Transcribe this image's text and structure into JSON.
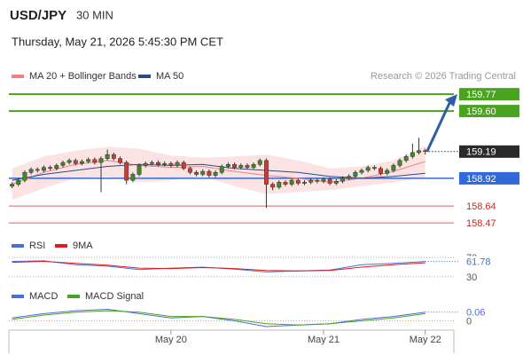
{
  "header": {
    "symbol": "USD/JPY",
    "timeframe": "30 MIN",
    "timestamp": "Thursday, May 21, 2026 5:45:30 PM CET",
    "copyright": "Research © 2026 Trading Central"
  },
  "chart_data": [
    {
      "type": "candlestick",
      "xlim": [
        0,
        70
      ],
      "xticks": [
        {
          "value": 25.5,
          "label": "May 20"
        },
        {
          "value": 49.5,
          "label": "May 21"
        },
        {
          "value": 65.5,
          "label": "May 22"
        }
      ],
      "ylim": [
        158.39,
        159.87
      ],
      "up_color": "#3d8b22",
      "down_color": "#d23a2f",
      "x": [
        0.5,
        1.5,
        2.5,
        3.5,
        4.5,
        5.5,
        6.5,
        7.5,
        8.5,
        9.5,
        10.5,
        11.5,
        12.5,
        13.5,
        14.5,
        15.5,
        16.5,
        17.5,
        18.5,
        19.5,
        20.5,
        21.5,
        22.5,
        23.5,
        24.5,
        25.5,
        26.5,
        27.5,
        28.5,
        29.5,
        30.5,
        31.5,
        32.5,
        33.5,
        34.5,
        35.5,
        36.5,
        37.5,
        38.5,
        39.5,
        40.5,
        41.5,
        42.5,
        43.5,
        44.5,
        45.5,
        46.5,
        47.5,
        48.5,
        49.5,
        50.5,
        51.5,
        52.5,
        53.5,
        54.5,
        55.5,
        56.5,
        57.5,
        58.5,
        59.5,
        60.5,
        61.5,
        62.5,
        63.5,
        64.5,
        65.5
      ],
      "open": [
        158.84,
        158.86,
        158.9,
        158.98,
        159.01,
        159.0,
        159.03,
        159.02,
        159.05,
        159.08,
        159.1,
        159.07,
        159.09,
        159.11,
        159.08,
        159.12,
        159.16,
        159.12,
        159.08,
        158.9,
        158.96,
        159.05,
        159.07,
        159.08,
        159.06,
        159.07,
        159.05,
        159.08,
        159.02,
        158.98,
        158.96,
        158.99,
        158.95,
        158.98,
        159.04,
        159.06,
        159.03,
        159.05,
        159.03,
        159.06,
        159.1,
        158.86,
        158.83,
        158.88,
        158.86,
        158.9,
        158.87,
        158.88,
        158.9,
        158.89,
        158.91,
        158.87,
        158.89,
        158.92,
        158.94,
        158.98,
        159.0,
        159.03,
        159.02,
        158.97,
        159.0,
        159.05,
        159.1,
        159.14,
        159.18,
        159.2
      ],
      "high": [
        158.88,
        158.92,
        159.0,
        159.03,
        159.03,
        159.05,
        159.05,
        159.07,
        159.1,
        159.12,
        159.12,
        159.11,
        159.13,
        159.13,
        159.14,
        159.21,
        159.18,
        159.14,
        159.1,
        158.98,
        159.07,
        159.09,
        159.1,
        159.1,
        159.09,
        159.09,
        159.1,
        159.1,
        159.04,
        159.0,
        159.01,
        159.01,
        159.0,
        159.06,
        159.08,
        159.08,
        159.07,
        159.07,
        159.08,
        159.12,
        159.12,
        158.88,
        158.9,
        158.9,
        158.92,
        158.92,
        158.9,
        158.92,
        158.92,
        158.93,
        158.93,
        158.91,
        158.94,
        158.96,
        159.0,
        159.02,
        159.05,
        159.05,
        159.04,
        159.02,
        159.07,
        159.12,
        159.16,
        159.27,
        159.33,
        159.22
      ],
      "low": [
        158.82,
        158.84,
        158.88,
        158.96,
        158.98,
        158.98,
        159.0,
        159.0,
        159.03,
        159.06,
        159.05,
        159.05,
        159.07,
        159.06,
        158.78,
        159.1,
        159.1,
        159.06,
        158.86,
        158.88,
        158.94,
        159.03,
        159.05,
        159.04,
        159.04,
        159.03,
        159.03,
        159.0,
        158.96,
        158.94,
        158.94,
        158.93,
        158.93,
        158.96,
        159.02,
        159.01,
        159.01,
        159.01,
        159.01,
        159.04,
        158.62,
        158.8,
        158.81,
        158.84,
        158.84,
        158.85,
        158.85,
        158.86,
        158.87,
        158.87,
        158.85,
        158.85,
        158.87,
        158.9,
        158.92,
        158.96,
        158.98,
        159.0,
        158.95,
        158.95,
        158.98,
        159.03,
        159.08,
        159.12,
        159.16,
        159.16
      ],
      "close": [
        158.86,
        158.9,
        158.98,
        159.01,
        159.0,
        159.03,
        159.02,
        159.05,
        159.08,
        159.1,
        159.07,
        159.09,
        159.11,
        159.08,
        159.12,
        159.16,
        159.12,
        159.08,
        158.9,
        158.96,
        159.05,
        159.07,
        159.08,
        159.06,
        159.07,
        159.05,
        159.08,
        159.02,
        158.98,
        158.96,
        158.99,
        158.95,
        158.98,
        159.04,
        159.06,
        159.03,
        159.05,
        159.03,
        159.06,
        159.1,
        158.86,
        158.83,
        158.88,
        158.86,
        158.9,
        158.87,
        158.88,
        158.9,
        158.89,
        158.91,
        158.87,
        158.89,
        158.92,
        158.94,
        158.98,
        159.0,
        159.03,
        159.02,
        158.97,
        159.0,
        159.05,
        159.1,
        159.14,
        159.18,
        159.2,
        159.19
      ],
      "overlay_x": [
        0.5,
        5.5,
        10.5,
        15.5,
        20.5,
        25.5,
        30.5,
        35.5,
        40.5,
        45.5,
        50.5,
        55.5,
        60.5,
        65.5
      ],
      "overlays": [
        {
          "name": "MA 20 + Bollinger Bands",
          "color": "#f08080",
          "band_color": "#fbdcdc",
          "values": [
            158.86,
            158.98,
            159.06,
            159.1,
            159.05,
            159.03,
            159.04,
            158.99,
            158.95,
            158.92,
            158.88,
            158.92,
            158.99,
            159.09
          ],
          "upper": [
            159.02,
            159.14,
            159.2,
            159.24,
            159.22,
            159.15,
            159.13,
            159.14,
            159.16,
            159.1,
            159.02,
            159.04,
            159.1,
            159.25
          ],
          "lower": [
            158.7,
            158.82,
            158.92,
            158.94,
            158.88,
            158.9,
            158.94,
            158.84,
            158.76,
            158.78,
            158.8,
            158.84,
            158.88,
            158.93
          ]
        },
        {
          "name": "MA 50",
          "color": "#2c4a86",
          "values": [
            158.9,
            158.96,
            159.0,
            159.04,
            159.06,
            159.05,
            159.06,
            159.02,
            159.0,
            158.98,
            158.94,
            158.92,
            158.94,
            158.97
          ]
        }
      ],
      "levels": [
        {
          "value": 159.77,
          "label": "159.77",
          "kind": "resistance",
          "color": "#4aa31e"
        },
        {
          "value": 159.6,
          "label": "159.60",
          "kind": "resistance",
          "color": "#4aa31e"
        },
        {
          "value": 158.92,
          "label": "158.92",
          "kind": "pivot",
          "color": "#2f6ad8"
        },
        {
          "value": 158.64,
          "label": "158.64",
          "kind": "support",
          "color": "#e06060"
        },
        {
          "value": 158.47,
          "label": "158.47",
          "kind": "support",
          "color": "#e06060"
        }
      ]
    },
    {
      "type": "line",
      "xlim": [
        0,
        70
      ],
      "ylim": [
        15,
        85
      ],
      "yticks": [
        30,
        70
      ],
      "x": [
        0.5,
        5.5,
        10.5,
        15.5,
        20.5,
        25.5,
        30.5,
        35.5,
        40.5,
        45.5,
        50.5,
        55.5,
        60.5,
        65.5
      ],
      "series": [
        {
          "name": "RSI",
          "color": "#4a6fd8",
          "values": [
            62,
            63,
            55,
            52,
            45,
            48,
            50,
            46,
            40,
            42,
            44,
            55,
            58,
            61.78
          ]
        },
        {
          "name": "9MA",
          "color": "#e01b1b",
          "values": [
            60,
            62,
            58,
            54,
            48,
            47,
            49,
            47,
            43,
            42,
            43,
            50,
            55,
            59
          ]
        }
      ]
    },
    {
      "type": "line",
      "xlim": [
        0,
        70
      ],
      "ylim": [
        -0.065,
        0.145
      ],
      "yticks": [
        0
      ],
      "x": [
        0.5,
        5.5,
        10.5,
        15.5,
        20.5,
        25.5,
        30.5,
        35.5,
        40.5,
        45.5,
        50.5,
        55.5,
        60.5,
        65.5
      ],
      "series": [
        {
          "name": "MACD",
          "color": "#4a6fd8",
          "values": [
            0.02,
            0.05,
            0.07,
            0.08,
            0.05,
            0.02,
            0.03,
            0.0,
            -0.04,
            -0.03,
            -0.02,
            0.01,
            0.03,
            0.06
          ]
        },
        {
          "name": "MACD Signal",
          "color": "#4aa31e",
          "values": [
            0.01,
            0.04,
            0.06,
            0.07,
            0.06,
            0.03,
            0.03,
            0.01,
            -0.02,
            -0.03,
            -0.02,
            0.0,
            0.02,
            0.05
          ]
        }
      ]
    }
  ]
}
